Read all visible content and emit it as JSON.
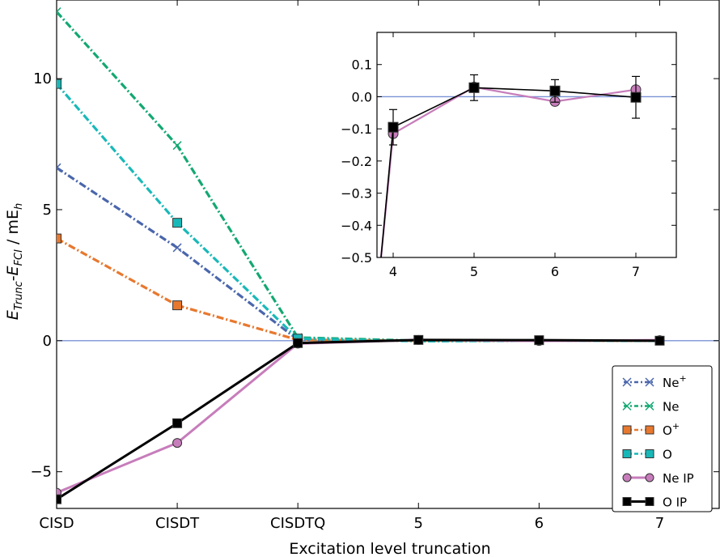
{
  "chart_data": [
    {
      "type": "line",
      "xlabel": "Excitation level truncation",
      "ylabel": "E_Trunc - E_FCI / mE_h",
      "ylabel_parts": {
        "e1": "E",
        "sub1": "Trunc",
        "dash": "-",
        "e2": "E",
        "sub2": "FCI",
        "unit": " / mE",
        "unit_sub": "h"
      },
      "categories": [
        "CISD",
        "CISDT",
        "CISDTQ",
        "5",
        "6",
        "7"
      ],
      "yticks": [
        -5,
        0,
        5,
        10
      ],
      "ylim": [
        -6.4,
        13
      ],
      "xlim": [
        1,
        6.5
      ],
      "reference_line": {
        "y": 0,
        "color": "#7b93d6"
      },
      "legend_position": "lower-right",
      "grid": false,
      "series": [
        {
          "name": "Ne⁺",
          "label_base": "Ne",
          "label_sup": "+",
          "color": "#4a66ac",
          "marker": "x",
          "line": "dashdot",
          "x": [
            1,
            2,
            3,
            4,
            5,
            6
          ],
          "values": [
            6.6,
            3.55,
            0.04,
            0.0,
            0.0,
            0.0
          ]
        },
        {
          "name": "Ne",
          "label_base": "Ne",
          "label_sup": "",
          "color": "#13a872",
          "marker": "x",
          "line": "dashdot",
          "x": [
            1,
            2,
            3,
            4,
            5,
            6
          ],
          "values": [
            12.55,
            7.45,
            0.12,
            0.0,
            0.0,
            0.0
          ]
        },
        {
          "name": "O⁺",
          "label_base": "O",
          "label_sup": "+",
          "color": "#e8782e",
          "marker": "square",
          "line": "dashdot",
          "x": [
            1,
            2,
            3,
            4,
            5,
            6
          ],
          "values": [
            3.9,
            1.35,
            0.03,
            0.0,
            0.0,
            0.0
          ]
        },
        {
          "name": "O",
          "label_base": "O",
          "label_sup": "",
          "color": "#19b8b8",
          "marker": "square",
          "line": "dashdot",
          "x": [
            1,
            2,
            3,
            4,
            5,
            6
          ],
          "values": [
            9.8,
            4.5,
            0.08,
            -0.02,
            0.0,
            0.0
          ]
        },
        {
          "name": "Ne IP",
          "label_base": "Ne IP",
          "label_sup": "",
          "color": "#c77dbb",
          "marker": "circle",
          "line": "solid",
          "x": [
            1,
            2,
            3,
            4,
            5,
            6
          ],
          "values": [
            -5.8,
            -3.9,
            -0.11,
            0.03,
            -0.01,
            0.02
          ]
        },
        {
          "name": "O IP",
          "label_base": "O IP",
          "label_sup": "",
          "color": "#000000",
          "marker": "square",
          "line": "solid",
          "x": [
            1,
            2,
            3,
            4,
            5,
            6
          ],
          "values": [
            -6.05,
            -3.15,
            -0.09,
            0.03,
            0.02,
            0.0
          ]
        }
      ]
    },
    {
      "type": "line",
      "inset": true,
      "xticks": [
        4,
        5,
        6,
        7
      ],
      "yticks": [
        -0.5,
        -0.4,
        -0.3,
        -0.2,
        -0.1,
        0.0,
        0.1
      ],
      "ytick_labels": [
        "−0.5",
        "−0.4",
        "−0.3",
        "−0.2",
        "−0.1",
        "0.0",
        "0.1"
      ],
      "xlim": [
        3.8,
        7.5
      ],
      "ylim": [
        -0.5,
        0.2
      ],
      "reference_line": {
        "y": 0,
        "color": "#7b93d6"
      },
      "series": [
        {
          "name": "Ne IP",
          "color": "#c77dbb",
          "marker": "circle",
          "x": [
            3.85,
            4,
            5,
            6,
            7
          ],
          "values": [
            -0.5,
            -0.115,
            0.03,
            -0.015,
            0.022
          ]
        },
        {
          "name": "O IP",
          "color": "#000000",
          "marker": "square",
          "x": [
            3.85,
            4,
            5,
            6,
            7
          ],
          "values": [
            -0.5,
            -0.095,
            0.028,
            0.018,
            -0.002
          ],
          "error": [
            0,
            0.055,
            0.04,
            0.035,
            0.065
          ]
        }
      ]
    }
  ]
}
